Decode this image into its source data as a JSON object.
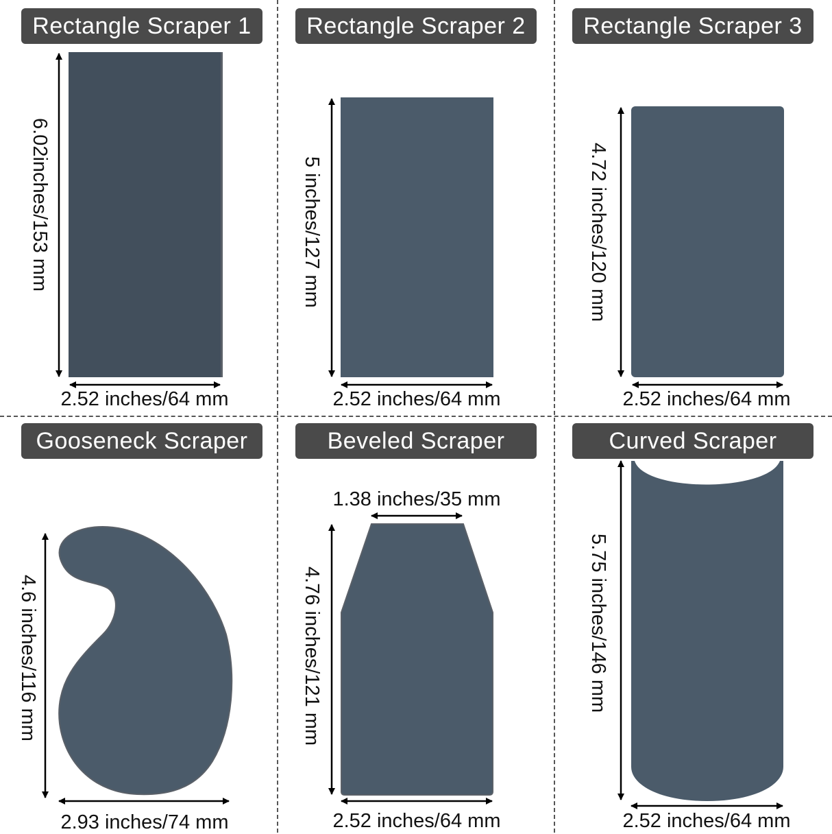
{
  "colors": {
    "badge_bg": "#4a4a4a",
    "shape_fill": "#4b5b6a",
    "shape_dark": "#424f5c",
    "arrow": "#000000"
  },
  "scrapers": [
    {
      "title": "Rectangle Scraper 1",
      "height_label": "6.02inches/153 mm",
      "width_label": "2.52 inches/64 mm"
    },
    {
      "title": "Rectangle Scraper 2",
      "height_label": "5 inches/127 mm",
      "width_label": "2.52 inches/64 mm"
    },
    {
      "title": "Rectangle Scraper 3",
      "height_label": "4.72 inches/120 mm",
      "width_label": "2.52 inches/64 mm"
    },
    {
      "title": "Gooseneck Scraper",
      "height_label": "4.6 inches/116 mm",
      "width_label": "2.93 inches/74 mm"
    },
    {
      "title": "Beveled Scraper",
      "top_label": "1.38 inches/35 mm",
      "height_label": "4.76 inches/121 mm",
      "width_label": "2.52 inches/64 mm"
    },
    {
      "title": "Curved Scraper",
      "height_label": "5.75 inches/146 mm",
      "width_label": "2.52 inches/64 mm"
    }
  ]
}
